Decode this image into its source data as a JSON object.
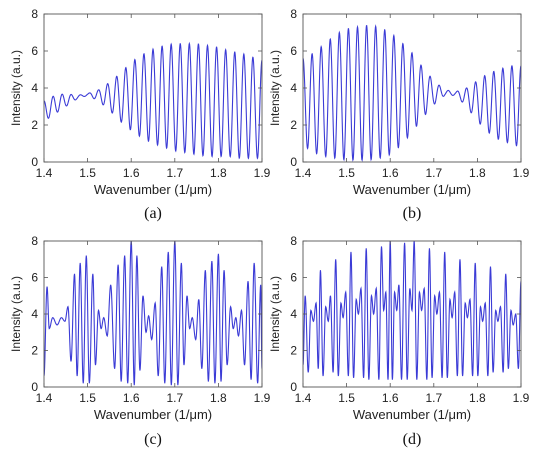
{
  "figure": {
    "line_color": "#3b3bd6",
    "axis_color": "#555555"
  },
  "chart_data": [
    {
      "type": "line",
      "caption": "(a)",
      "xlabel": "Wavenumber (1/μm)",
      "ylabel": "Intensity (a.u.)",
      "xlim": [
        1.4,
        1.9
      ],
      "ylim": [
        0,
        8
      ],
      "xticks": [
        "1.4",
        "1.5",
        "1.6",
        "1.7",
        "1.8",
        "1.9"
      ],
      "yticks": [
        "0",
        "2",
        "4",
        "6",
        "8"
      ],
      "series": [
        {
          "x": [
            1.4,
            1.425,
            1.45,
            1.475,
            1.5,
            1.525,
            1.55,
            1.575,
            1.6,
            1.625,
            1.65,
            1.675,
            1.7,
            1.725,
            1.75,
            1.775,
            1.8,
            1.825,
            1.85,
            1.875,
            1.9
          ],
          "upper": [
            3.3,
            3.6,
            3.7,
            3.6,
            3.7,
            3.9,
            4.3,
            4.8,
            5.4,
            5.8,
            6.1,
            6.3,
            6.4,
            6.4,
            6.4,
            6.3,
            6.2,
            6.0,
            5.9,
            5.7,
            5.5
          ],
          "lower": [
            2.2,
            2.6,
            3.0,
            3.4,
            3.6,
            3.3,
            2.8,
            2.2,
            1.7,
            1.3,
            1.0,
            0.8,
            0.6,
            0.5,
            0.4,
            0.3,
            0.3,
            0.3,
            0.2,
            0.2,
            0.2
          ],
          "cycles": 24
        }
      ]
    },
    {
      "type": "line",
      "caption": "(b)",
      "xlabel": "Wavenumber (1/μm)",
      "ylabel": "Intensity (a.u.)",
      "xlim": [
        1.4,
        1.9
      ],
      "ylim": [
        0,
        8
      ],
      "xticks": [
        "1.4",
        "1.5",
        "1.6",
        "1.7",
        "1.8",
        "1.9"
      ],
      "yticks": [
        "0",
        "2",
        "4",
        "6",
        "8"
      ],
      "series": [
        {
          "x": [
            1.4,
            1.425,
            1.45,
            1.475,
            1.5,
            1.525,
            1.55,
            1.575,
            1.6,
            1.625,
            1.65,
            1.675,
            1.7,
            1.725,
            1.75,
            1.775,
            1.8,
            1.825,
            1.85,
            1.875,
            1.9
          ],
          "upper": [
            5.6,
            5.9,
            6.4,
            6.9,
            7.2,
            7.3,
            7.4,
            7.3,
            7.0,
            6.5,
            5.9,
            5.1,
            4.4,
            3.9,
            3.8,
            4.0,
            4.4,
            4.8,
            5.0,
            5.2,
            5.2
          ],
          "lower": [
            0.9,
            0.5,
            0.3,
            0.2,
            0.1,
            0.1,
            0.1,
            0.2,
            0.4,
            0.9,
            1.6,
            2.4,
            3.1,
            3.6,
            3.6,
            3.0,
            2.2,
            1.6,
            1.2,
            1.0,
            0.8
          ],
          "cycles": 24
        }
      ]
    },
    {
      "type": "line",
      "caption": "(c)",
      "xlabel": "Wavenumber (1/μm)",
      "ylabel": "Intensity (a.u.)",
      "xlim": [
        1.4,
        1.9
      ],
      "ylim": [
        0,
        8
      ],
      "xticks": [
        "1.4",
        "1.5",
        "1.6",
        "1.7",
        "1.8",
        "1.9"
      ],
      "yticks": [
        "0",
        "2",
        "4",
        "6",
        "8"
      ],
      "series": [
        {
          "peaks": [
            [
              1.407,
              5.5
            ],
            [
              1.42,
              3.8
            ],
            [
              1.44,
              3.8
            ],
            [
              1.455,
              4.4
            ],
            [
              1.47,
              6.2
            ],
            [
              1.483,
              6.8
            ],
            [
              1.497,
              7.2
            ],
            [
              1.512,
              6.2
            ],
            [
              1.525,
              4.2
            ],
            [
              1.537,
              3.8
            ],
            [
              1.553,
              5.6
            ],
            [
              1.57,
              6.7
            ],
            [
              1.585,
              7.2
            ],
            [
              1.6,
              8.0
            ],
            [
              1.613,
              7.2
            ],
            [
              1.627,
              5.0
            ],
            [
              1.64,
              3.9
            ],
            [
              1.655,
              4.6
            ],
            [
              1.67,
              6.6
            ],
            [
              1.685,
              7.4
            ],
            [
              1.7,
              8.0
            ],
            [
              1.715,
              6.8
            ],
            [
              1.728,
              5.0
            ],
            [
              1.74,
              3.8
            ],
            [
              1.755,
              4.8
            ],
            [
              1.77,
              6.4
            ],
            [
              1.785,
              6.9
            ],
            [
              1.8,
              7.3
            ],
            [
              1.813,
              6.4
            ],
            [
              1.828,
              4.4
            ],
            [
              1.84,
              3.8
            ],
            [
              1.853,
              4.2
            ],
            [
              1.868,
              5.8
            ],
            [
              1.882,
              6.8
            ],
            [
              1.897,
              5.6
            ]
          ],
          "valleys": [
            [
              1.4,
              0.6
            ],
            [
              1.412,
              3.2
            ],
            [
              1.43,
              3.4
            ],
            [
              1.448,
              3.6
            ],
            [
              1.462,
              1.4
            ],
            [
              1.476,
              0.6
            ],
            [
              1.49,
              0.2
            ],
            [
              1.504,
              0.2
            ],
            [
              1.518,
              1.2
            ],
            [
              1.531,
              3.2
            ],
            [
              1.545,
              2.8
            ],
            [
              1.562,
              1.0
            ],
            [
              1.577,
              0.3
            ],
            [
              1.592,
              0.2
            ],
            [
              1.607,
              0.1
            ],
            [
              1.62,
              0.9
            ],
            [
              1.634,
              3.0
            ],
            [
              1.647,
              2.6
            ],
            [
              1.662,
              0.6
            ],
            [
              1.677,
              0.2
            ],
            [
              1.692,
              0.1
            ],
            [
              1.707,
              0.1
            ],
            [
              1.721,
              1.2
            ],
            [
              1.734,
              3.2
            ],
            [
              1.748,
              2.6
            ],
            [
              1.762,
              1.0
            ],
            [
              1.777,
              0.3
            ],
            [
              1.792,
              0.2
            ],
            [
              1.806,
              0.3
            ],
            [
              1.82,
              1.2
            ],
            [
              1.834,
              3.2
            ],
            [
              1.846,
              2.8
            ],
            [
              1.86,
              1.2
            ],
            [
              1.875,
              0.4
            ],
            [
              1.89,
              0.2
            ],
            [
              1.9,
              1.0
            ]
          ]
        }
      ]
    },
    {
      "type": "line",
      "caption": "(d)",
      "xlabel": "Wavenumber (1/μm)",
      "ylabel": "Intensity (a.u.)",
      "xlim": [
        1.4,
        1.9
      ],
      "ylim": [
        0,
        8
      ],
      "xticks": [
        "1.4",
        "1.5",
        "1.6",
        "1.7",
        "1.8",
        "1.9"
      ],
      "yticks": [
        "0",
        "2",
        "4",
        "6",
        "8"
      ],
      "series": [
        {
          "peaks": [
            [
              1.405,
              5.0
            ],
            [
              1.418,
              4.2
            ],
            [
              1.43,
              4.6
            ],
            [
              1.44,
              6.4
            ],
            [
              1.452,
              4.4
            ],
            [
              1.463,
              5.0
            ],
            [
              1.475,
              7.0
            ],
            [
              1.487,
              4.6
            ],
            [
              1.498,
              5.2
            ],
            [
              1.51,
              7.4
            ],
            [
              1.522,
              4.8
            ],
            [
              1.533,
              5.4
            ],
            [
              1.545,
              7.6
            ],
            [
              1.557,
              5.0
            ],
            [
              1.568,
              5.4
            ],
            [
              1.58,
              7.7
            ],
            [
              1.59,
              5.2
            ],
            [
              1.6,
              8.0
            ],
            [
              1.61,
              5.2
            ],
            [
              1.62,
              5.6
            ],
            [
              1.633,
              7.9
            ],
            [
              1.645,
              5.4
            ],
            [
              1.655,
              8.0
            ],
            [
              1.667,
              5.2
            ],
            [
              1.678,
              5.4
            ],
            [
              1.69,
              7.6
            ],
            [
              1.702,
              5.0
            ],
            [
              1.713,
              5.2
            ],
            [
              1.725,
              7.4
            ],
            [
              1.737,
              4.8
            ],
            [
              1.748,
              5.2
            ],
            [
              1.76,
              7.0
            ],
            [
              1.772,
              4.6
            ],
            [
              1.783,
              4.8
            ],
            [
              1.795,
              6.8
            ],
            [
              1.807,
              4.4
            ],
            [
              1.818,
              4.6
            ],
            [
              1.83,
              6.6
            ],
            [
              1.842,
              4.2
            ],
            [
              1.853,
              4.4
            ],
            [
              1.865,
              6.2
            ],
            [
              1.877,
              4.2
            ],
            [
              1.888,
              4.0
            ],
            [
              1.9,
              5.8
            ]
          ],
          "valleys": [
            [
              1.4,
              1.2
            ],
            [
              1.412,
              0.8
            ],
            [
              1.424,
              3.6
            ],
            [
              1.435,
              1.0
            ],
            [
              1.446,
              0.6
            ],
            [
              1.458,
              3.6
            ],
            [
              1.469,
              0.8
            ],
            [
              1.481,
              0.6
            ],
            [
              1.492,
              3.8
            ],
            [
              1.504,
              0.6
            ],
            [
              1.516,
              0.5
            ],
            [
              1.527,
              4.0
            ],
            [
              1.539,
              0.5
            ],
            [
              1.551,
              0.4
            ],
            [
              1.562,
              4.0
            ],
            [
              1.574,
              0.4
            ],
            [
              1.585,
              4.2
            ],
            [
              1.595,
              0.4
            ],
            [
              1.605,
              0.4
            ],
            [
              1.615,
              4.2
            ],
            [
              1.626,
              0.4
            ],
            [
              1.639,
              0.4
            ],
            [
              1.65,
              4.2
            ],
            [
              1.661,
              0.4
            ],
            [
              1.672,
              4.2
            ],
            [
              1.684,
              0.4
            ],
            [
              1.696,
              0.5
            ],
            [
              1.707,
              4.0
            ],
            [
              1.719,
              0.5
            ],
            [
              1.731,
              0.5
            ],
            [
              1.742,
              3.8
            ],
            [
              1.754,
              0.6
            ],
            [
              1.766,
              0.6
            ],
            [
              1.777,
              3.8
            ],
            [
              1.789,
              0.6
            ],
            [
              1.801,
              0.6
            ],
            [
              1.812,
              3.6
            ],
            [
              1.824,
              0.6
            ],
            [
              1.836,
              0.8
            ],
            [
              1.847,
              3.6
            ],
            [
              1.859,
              0.8
            ],
            [
              1.871,
              1.0
            ],
            [
              1.882,
              3.4
            ],
            [
              1.894,
              1.0
            ]
          ]
        }
      ]
    }
  ]
}
